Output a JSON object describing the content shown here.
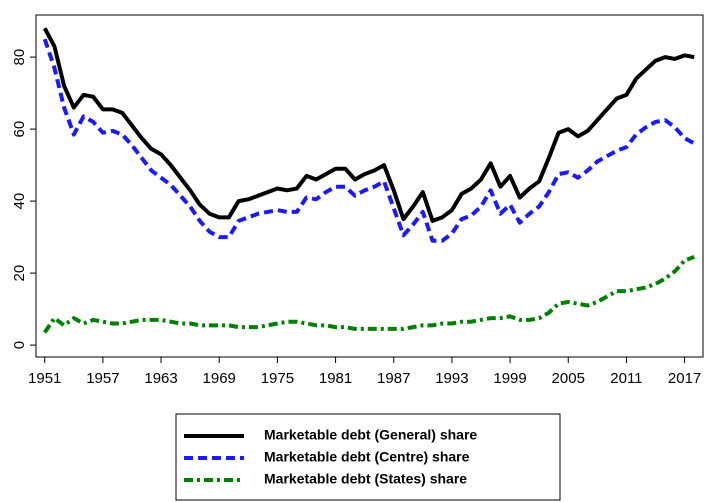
{
  "chart_data": {
    "type": "line",
    "x": [
      1951,
      1952,
      1953,
      1954,
      1955,
      1956,
      1957,
      1958,
      1959,
      1960,
      1961,
      1962,
      1963,
      1964,
      1965,
      1966,
      1967,
      1968,
      1969,
      1970,
      1971,
      1972,
      1973,
      1974,
      1975,
      1976,
      1977,
      1978,
      1979,
      1980,
      1981,
      1982,
      1983,
      1984,
      1985,
      1986,
      1987,
      1988,
      1989,
      1990,
      1991,
      1992,
      1993,
      1994,
      1995,
      1996,
      1997,
      1998,
      1999,
      2000,
      2001,
      2002,
      2003,
      2004,
      2005,
      2006,
      2007,
      2008,
      2009,
      2010,
      2011,
      2012,
      2013,
      2014,
      2015,
      2016,
      2017,
      2018
    ],
    "series": [
      {
        "name": "Marketable debt (General) share",
        "color": "#000000",
        "dash": "solid",
        "values": [
          88,
          83,
          72,
          66,
          69.5,
          69,
          65.5,
          65.5,
          64.5,
          61,
          57.5,
          54.5,
          53,
          50,
          46.5,
          43,
          39,
          36.5,
          35.5,
          35.5,
          40,
          40.5,
          41.5,
          42.5,
          43.5,
          43,
          43.5,
          47,
          46,
          47.5,
          49,
          49,
          46,
          47.5,
          48.5,
          50,
          43,
          35,
          38.5,
          42.5,
          34.5,
          35.5,
          37.5,
          42,
          43.5,
          46,
          50.5,
          44,
          47,
          41,
          43.5,
          45.5,
          52,
          59,
          60,
          58,
          59.5,
          62.5,
          65.5,
          68.5,
          69.5,
          74,
          76.5,
          79,
          80,
          79.5,
          80.5,
          80
        ]
      },
      {
        "name": "Marketable debt (Centre) share",
        "color": "#1a1aff",
        "dash": "dashed",
        "values": [
          85,
          77,
          66,
          58.5,
          63.5,
          62,
          59,
          59.5,
          58.5,
          55.5,
          52,
          48.5,
          46.5,
          44.5,
          41.5,
          38.5,
          34.5,
          31.5,
          30,
          30,
          34.5,
          35.5,
          36.5,
          37,
          37.5,
          37,
          37,
          41,
          40.5,
          42.5,
          44,
          44,
          41.5,
          43,
          44,
          45.5,
          38,
          30.5,
          33.5,
          37,
          29,
          29,
          31,
          35,
          36,
          38.5,
          43,
          36.5,
          39,
          34,
          36.5,
          38.5,
          42.5,
          47.5,
          48,
          46.5,
          48.5,
          51,
          52.5,
          54,
          55,
          58.5,
          60.5,
          62,
          62.5,
          60.5,
          57.5,
          56
        ]
      },
      {
        "name": "Marketable debt (States) share",
        "color": "#008000",
        "dash": "dashdot",
        "values": [
          3.5,
          7.5,
          5.5,
          7.5,
          6,
          7,
          6.5,
          6,
          6,
          6.5,
          7,
          7,
          7,
          6.5,
          6,
          6,
          5.5,
          5.5,
          5.5,
          5.5,
          5,
          5,
          5,
          5.5,
          6,
          6.5,
          6.5,
          6,
          5.5,
          5.5,
          5,
          5,
          4.5,
          4.5,
          4.5,
          4.5,
          4.5,
          4.5,
          5,
          5.5,
          5.5,
          6,
          6,
          6.5,
          6.5,
          7,
          7.5,
          7.5,
          8,
          7,
          7,
          7.5,
          9,
          11.5,
          12,
          11.5,
          11,
          12,
          13.5,
          15,
          15,
          15.5,
          16,
          17,
          18.5,
          20.5,
          23.5,
          24.5
        ]
      }
    ],
    "xlim": [
      1950.1,
      2018.9
    ],
    "xticks": [
      1951,
      1957,
      1963,
      1969,
      1975,
      1981,
      1987,
      1993,
      1999,
      2005,
      2011,
      2017
    ],
    "ylim": [
      -3.3,
      91.7
    ],
    "yticks": [
      0,
      20,
      40,
      60,
      80
    ]
  }
}
